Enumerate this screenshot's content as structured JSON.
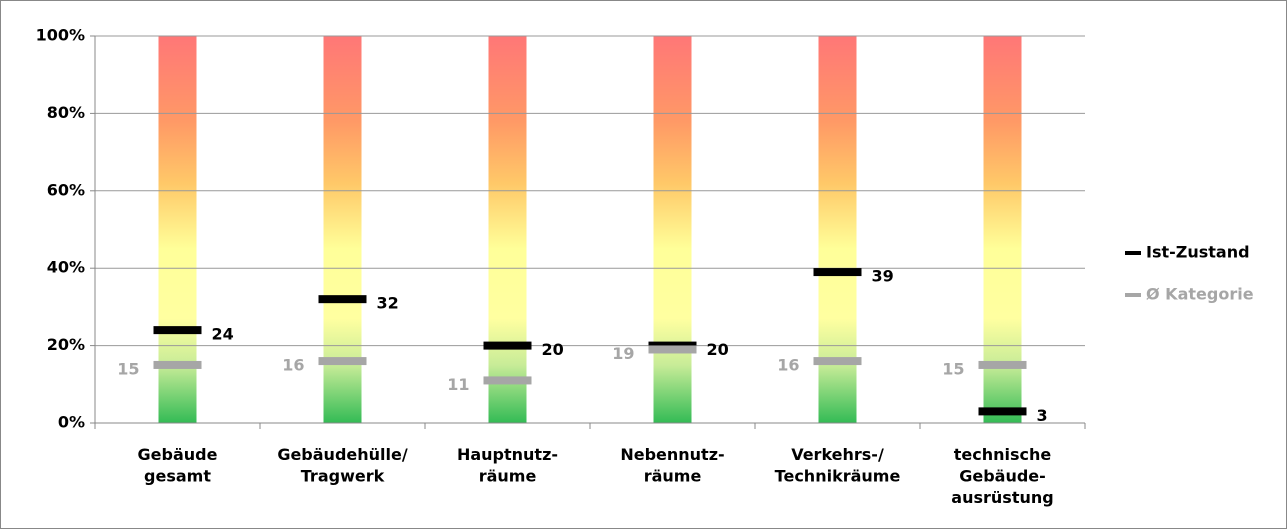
{
  "chart_data": {
    "type": "marker",
    "categories": [
      "Gebäude\ngesamt",
      "Gebäudehülle/\nTragwerk",
      "Hauptnutz-\nräume",
      "Nebennutz-\nräume",
      "Verkehrs-/\nTechnikräume",
      "technische\nGebäude-\nausrüstung"
    ],
    "series": [
      {
        "name": "Ist-Zustand",
        "color": "#000000",
        "values": [
          24,
          32,
          20,
          20,
          39,
          3
        ]
      },
      {
        "name": "Ø Kategorie",
        "color": "#a6a6a6",
        "values": [
          15,
          16,
          11,
          19,
          16,
          15
        ]
      }
    ],
    "ylim": [
      0,
      100
    ],
    "yticks": [
      {
        "value": 0,
        "label": "0%"
      },
      {
        "value": 20,
        "label": "20%"
      },
      {
        "value": 40,
        "label": "40%"
      },
      {
        "value": 60,
        "label": "60%"
      },
      {
        "value": 80,
        "label": "80%"
      },
      {
        "value": 100,
        "label": "100%"
      }
    ],
    "grid": true,
    "legend": "right"
  }
}
